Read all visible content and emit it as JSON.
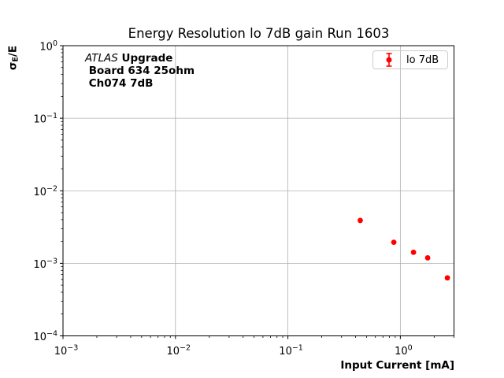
{
  "chart_data": {
    "type": "scatter",
    "title": "Energy Resolution lo 7dB gain Run 1603",
    "xlabel": "Input Current [mA]",
    "ylabel": {
      "symbol": "σ",
      "subscript": "E",
      "rest": "/E"
    },
    "x_scale": "log",
    "y_scale": "log",
    "xlim": [
      0.001,
      3.0
    ],
    "ylim": [
      0.0001,
      1.0
    ],
    "grid": true,
    "x_tick_exponents": [
      -3,
      -2,
      -1,
      0
    ],
    "y_tick_exponents": [
      0,
      -1,
      -2,
      -3,
      -4
    ],
    "annotation": {
      "line1_italic": "ATLAS",
      "line1_bold": " Upgrade",
      "line2": " Board 634 25ohm",
      "line3": " Ch074 7dB"
    },
    "legend": {
      "label": "lo 7dB",
      "position": "upper right"
    },
    "series": [
      {
        "name": "lo 7dB",
        "color": "#ff0000",
        "marker": "circle-with-errorbar",
        "x": [
          0.44,
          0.875,
          1.31,
          1.75,
          2.62
        ],
        "y": [
          0.0039,
          0.00195,
          0.00142,
          0.00119,
          0.00063
        ],
        "yerr": [
          0.00015,
          7e-05,
          6e-05,
          5e-05,
          3e-05
        ]
      }
    ]
  },
  "colors": {
    "grid": "#b0b0b0",
    "spine": "#000000",
    "tick": "#000000",
    "marker": "#ff0000",
    "legend_border": "#cccccc",
    "background": "#ffffff"
  }
}
